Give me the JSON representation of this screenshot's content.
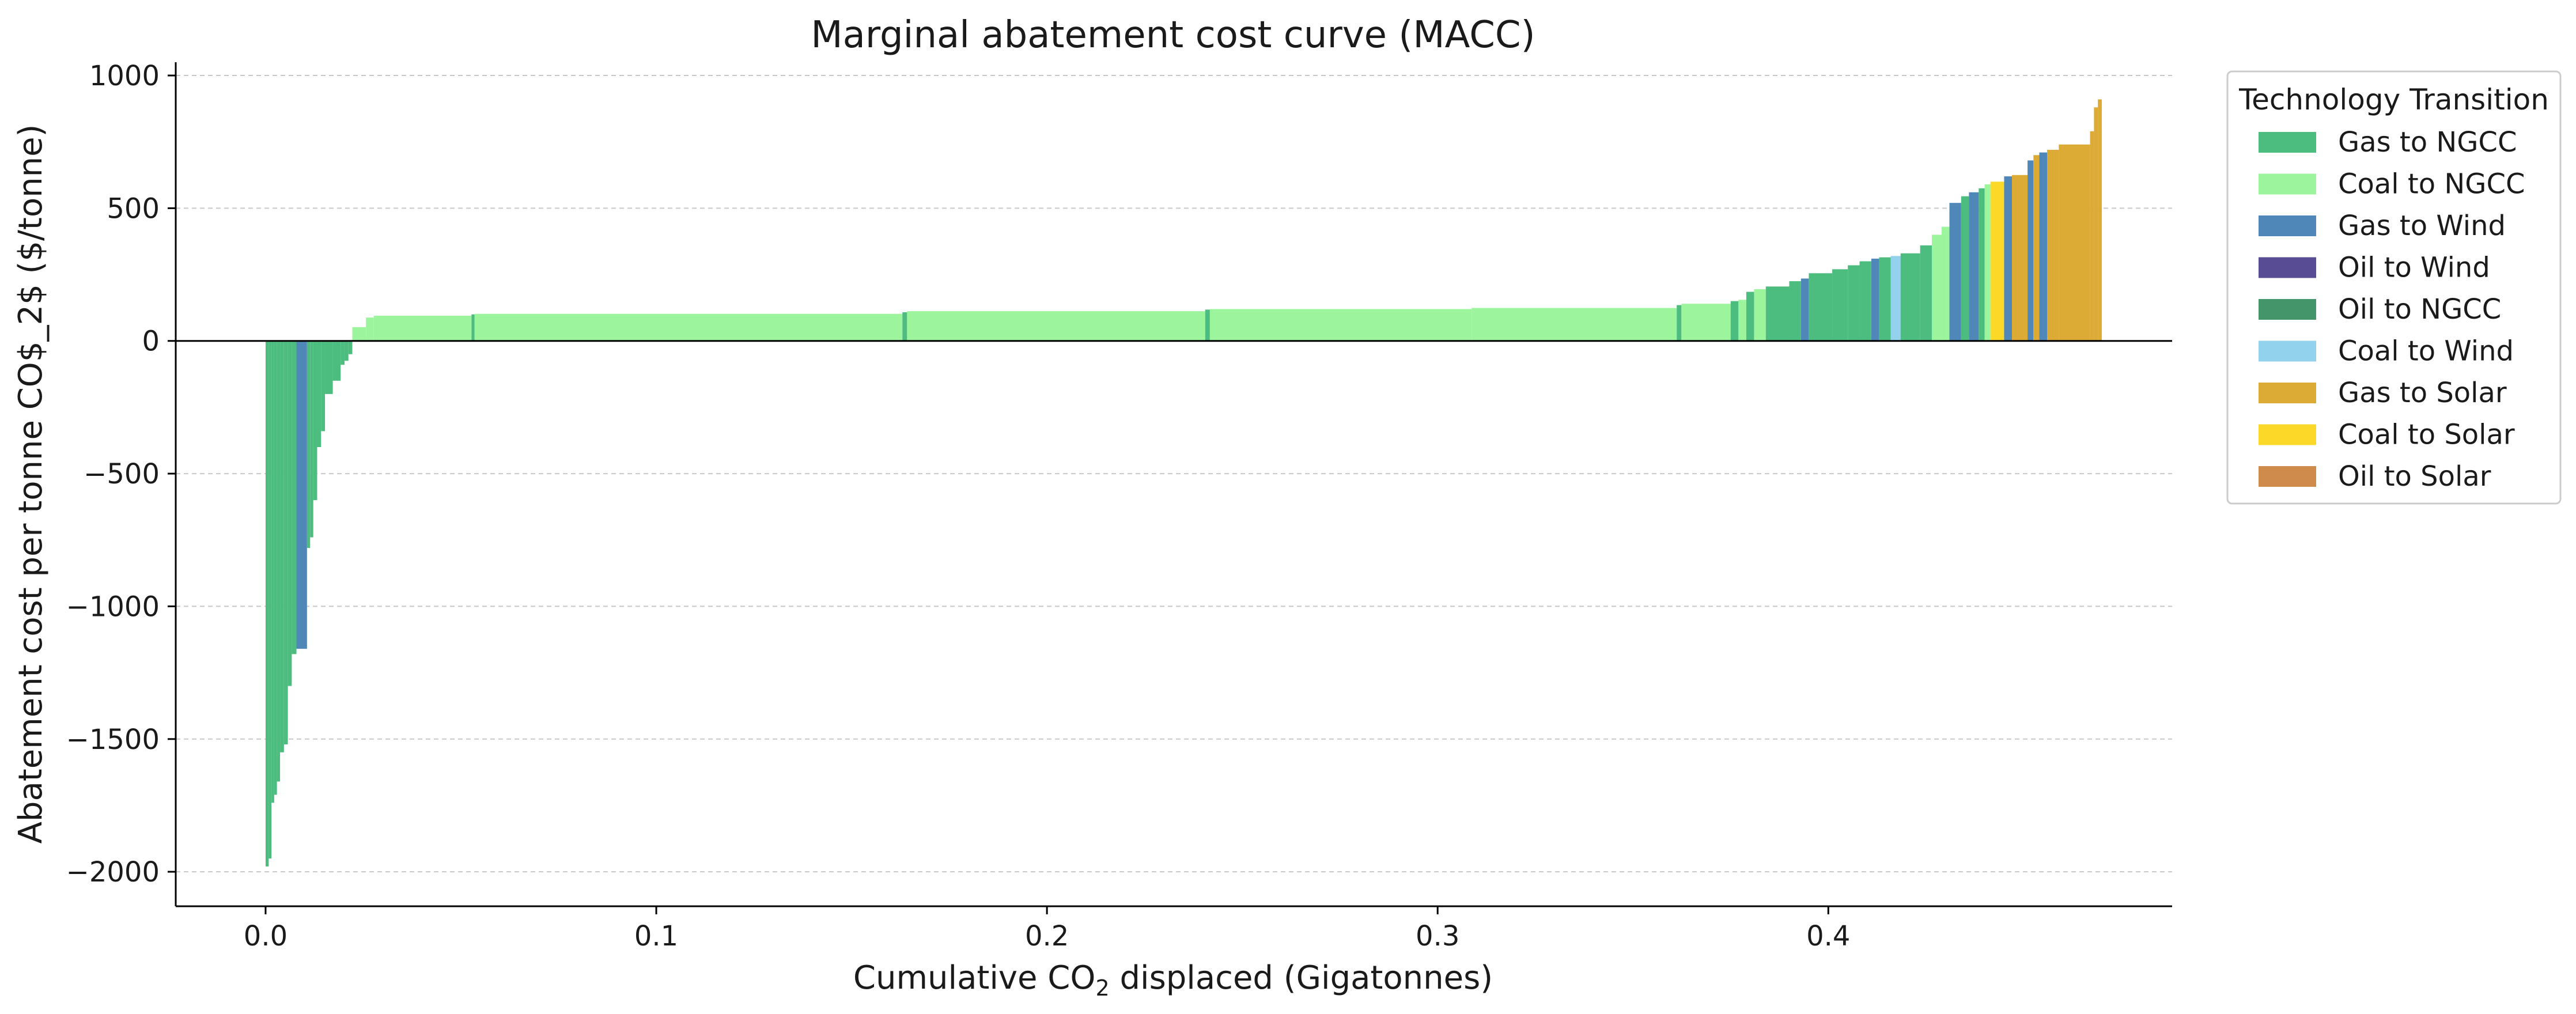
{
  "chart_data": {
    "type": "bar",
    "title": "Marginal abatement cost curve (MACC)",
    "xlabel_prefix": "Cumulative CO",
    "xlabel_sub": "2",
    "xlabel_suffix": " displaced (Gigatonnes)",
    "ylabel": "Abatement cost per tonne CO$_2$ ($/tonne)",
    "xlim": [
      -0.023,
      0.488
    ],
    "ylim": [
      -2130,
      1050
    ],
    "x_ticks": [
      0.0,
      0.1,
      0.2,
      0.3,
      0.4
    ],
    "x_tick_labels": [
      "0.0",
      "0.1",
      "0.2",
      "0.3",
      "0.4"
    ],
    "y_ticks": [
      1000,
      500,
      0,
      -500,
      -1000,
      -1500,
      -2000
    ],
    "y_tick_labels": [
      "1000",
      "500",
      "0",
      "−500",
      "−1000",
      "−1500",
      "−2000"
    ],
    "grid": "y-dashed",
    "legend": {
      "title": "Technology Transition",
      "placement": "outside-right-top",
      "entries": [
        {
          "name": "Gas to NGCC",
          "color": "#4dbd7f"
        },
        {
          "name": "Coal to NGCC",
          "color": "#9cf59c"
        },
        {
          "name": "Gas to Wind",
          "color": "#4f87b8"
        },
        {
          "name": "Oil to Wind",
          "color": "#584c94"
        },
        {
          "name": "Oil to NGCC",
          "color": "#44966a"
        },
        {
          "name": "Coal to Wind",
          "color": "#92d2ec"
        },
        {
          "name": "Gas to Solar",
          "color": "#dbab36"
        },
        {
          "name": "Coal to Solar",
          "color": "#fcd928"
        },
        {
          "name": "Oil to Solar",
          "color": "#cf8b4c"
        }
      ]
    },
    "bars_format": "[start_x_Gt, width_Gt, cost_$/tonne, series_index]",
    "bars": [
      [
        0.0,
        0.0008,
        -1980,
        0
      ],
      [
        0.0008,
        0.0007,
        -1950,
        0
      ],
      [
        0.0015,
        0.0007,
        -1740,
        0
      ],
      [
        0.0022,
        0.0007,
        -1710,
        0
      ],
      [
        0.0029,
        0.0008,
        -1660,
        0
      ],
      [
        0.0037,
        0.001,
        -1550,
        0
      ],
      [
        0.0047,
        0.001,
        -1520,
        0
      ],
      [
        0.0057,
        0.001,
        -1300,
        0
      ],
      [
        0.0067,
        0.0012,
        -1180,
        0
      ],
      [
        0.0079,
        0.0027,
        -1160,
        2
      ],
      [
        0.0106,
        0.0008,
        -780,
        0
      ],
      [
        0.0114,
        0.0008,
        -740,
        0
      ],
      [
        0.0122,
        0.001,
        -600,
        0
      ],
      [
        0.0132,
        0.001,
        -400,
        0
      ],
      [
        0.0142,
        0.001,
        -340,
        0
      ],
      [
        0.0152,
        0.002,
        -200,
        0
      ],
      [
        0.0172,
        0.002,
        -150,
        0
      ],
      [
        0.0192,
        0.001,
        -90,
        0
      ],
      [
        0.0202,
        0.001,
        -75,
        0
      ],
      [
        0.0212,
        0.001,
        -50,
        0
      ],
      [
        0.0222,
        0.0035,
        52,
        1
      ],
      [
        0.0257,
        0.002,
        88,
        1
      ],
      [
        0.0277,
        0.025,
        95,
        1
      ],
      [
        0.0527,
        0.0008,
        100,
        0
      ],
      [
        0.0535,
        0.1095,
        102,
        1
      ],
      [
        0.163,
        0.0012,
        108,
        0
      ],
      [
        0.1642,
        0.0763,
        112,
        1
      ],
      [
        0.2405,
        0.0012,
        118,
        0
      ],
      [
        0.2417,
        0.067,
        120,
        1
      ],
      [
        0.3087,
        0.0525,
        124,
        1
      ],
      [
        0.3612,
        0.0012,
        135,
        0
      ],
      [
        0.3624,
        0.0126,
        140,
        1
      ],
      [
        0.375,
        0.002,
        150,
        0
      ],
      [
        0.377,
        0.002,
        155,
        1
      ],
      [
        0.379,
        0.002,
        185,
        0
      ],
      [
        0.381,
        0.003,
        195,
        1
      ],
      [
        0.384,
        0.006,
        205,
        0
      ],
      [
        0.39,
        0.003,
        225,
        0
      ],
      [
        0.393,
        0.002,
        235,
        2
      ],
      [
        0.395,
        0.006,
        255,
        0
      ],
      [
        0.401,
        0.004,
        270,
        0
      ],
      [
        0.405,
        0.003,
        285,
        0
      ],
      [
        0.408,
        0.003,
        300,
        0
      ],
      [
        0.411,
        0.002,
        310,
        2
      ],
      [
        0.413,
        0.003,
        315,
        0
      ],
      [
        0.416,
        0.0025,
        320,
        5
      ],
      [
        0.4185,
        0.005,
        330,
        0
      ],
      [
        0.4235,
        0.003,
        360,
        0
      ],
      [
        0.4265,
        0.0025,
        400,
        1
      ],
      [
        0.429,
        0.002,
        430,
        1
      ],
      [
        0.431,
        0.003,
        520,
        2
      ],
      [
        0.434,
        0.002,
        545,
        0
      ],
      [
        0.436,
        0.0025,
        560,
        2
      ],
      [
        0.4385,
        0.0015,
        575,
        0
      ],
      [
        0.44,
        0.0015,
        590,
        1
      ],
      [
        0.4415,
        0.0035,
        600,
        7
      ],
      [
        0.445,
        0.002,
        620,
        2
      ],
      [
        0.447,
        0.004,
        625,
        6
      ],
      [
        0.451,
        0.0015,
        680,
        2
      ],
      [
        0.4525,
        0.0015,
        700,
        6
      ],
      [
        0.454,
        0.002,
        710,
        2
      ],
      [
        0.456,
        0.003,
        720,
        6
      ],
      [
        0.459,
        0.008,
        740,
        6
      ],
      [
        0.467,
        0.001,
        790,
        6
      ],
      [
        0.468,
        0.001,
        880,
        6
      ],
      [
        0.469,
        0.001,
        910,
        6
      ]
    ]
  }
}
